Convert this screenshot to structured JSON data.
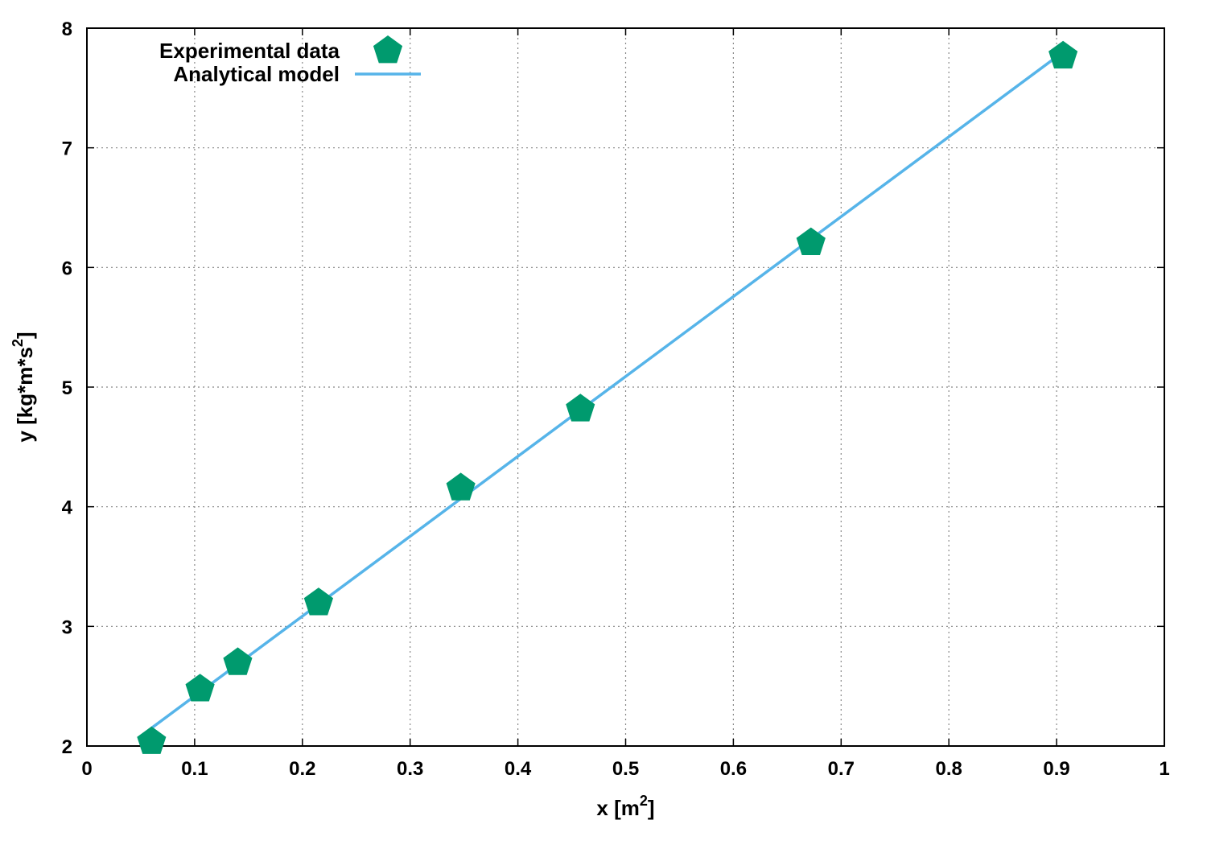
{
  "chart_data": {
    "type": "scatter",
    "title": "",
    "xlabel": {
      "base": "x [m",
      "sup": "2",
      "tail": "]"
    },
    "ylabel": {
      "base": "y [kg*m*s",
      "sup": "2",
      "tail": "]"
    },
    "xlim": [
      0,
      1
    ],
    "ylim": [
      2,
      8
    ],
    "xticks": [
      0,
      0.1,
      0.2,
      0.3,
      0.4,
      0.5,
      0.6,
      0.7,
      0.8,
      0.9,
      1
    ],
    "xtick_labels": [
      "0",
      "0.1",
      "0.2",
      "0.3",
      "0.4",
      "0.5",
      "0.6",
      "0.7",
      "0.8",
      "0.9",
      "1"
    ],
    "yticks": [
      2,
      3,
      4,
      5,
      6,
      7,
      8
    ],
    "ytick_labels": [
      "2",
      "3",
      "4",
      "5",
      "6",
      "7",
      "8"
    ],
    "grid": true,
    "legend_position": "top-left",
    "series": [
      {
        "name": "Experimental data",
        "kind": "scatter",
        "marker": "pentagon",
        "color": "#009a6e",
        "x": [
          0.06,
          0.105,
          0.14,
          0.215,
          0.347,
          0.458,
          0.672,
          0.906
        ],
        "y": [
          2.05,
          2.49,
          2.71,
          3.21,
          4.17,
          4.83,
          6.22,
          7.78
        ]
      },
      {
        "name": "Analytical model",
        "kind": "line",
        "color": "#56b4e9",
        "x": [
          0.06,
          0.906
        ],
        "y": [
          2.15,
          7.8
        ]
      }
    ]
  }
}
